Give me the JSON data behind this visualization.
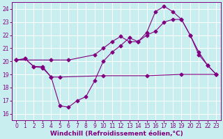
{
  "title": "",
  "xlabel": "Windchill (Refroidissement éolien,°C)",
  "ylabel": "",
  "bg_color": "#c8eef0",
  "grid_color": "#ffffff",
  "line_color": "#800080",
  "xlim": [
    -0.5,
    23.5
  ],
  "ylim": [
    15.5,
    24.5
  ],
  "xticks": [
    0,
    1,
    2,
    3,
    4,
    5,
    6,
    7,
    8,
    9,
    10,
    11,
    12,
    13,
    14,
    15,
    16,
    17,
    18,
    19,
    20,
    21,
    22,
    23
  ],
  "yticks": [
    16,
    17,
    18,
    19,
    20,
    21,
    22,
    23,
    24
  ],
  "line1_x": [
    0,
    1,
    2,
    3,
    4,
    5,
    10,
    15,
    19,
    23
  ],
  "line1_y": [
    20.1,
    20.2,
    19.6,
    19.6,
    18.8,
    18.8,
    18.9,
    18.9,
    19.0,
    19.0
  ],
  "line2_x": [
    0,
    1,
    2,
    3,
    4,
    5,
    6,
    7,
    8,
    9,
    10,
    11,
    12,
    13,
    14,
    15,
    16,
    17,
    18,
    19,
    20,
    21,
    22,
    23
  ],
  "line2_y": [
    20.1,
    20.2,
    19.6,
    19.5,
    18.8,
    16.6,
    16.5,
    17.0,
    17.3,
    18.5,
    20.0,
    20.7,
    21.2,
    21.8,
    21.5,
    22.2,
    23.8,
    24.2,
    23.8,
    23.2,
    22.0,
    20.5,
    19.7,
    19.0
  ],
  "line3_x": [
    0,
    4,
    6,
    9,
    10,
    11,
    12,
    13,
    14,
    15,
    16,
    17,
    18,
    19,
    20,
    21,
    22,
    23
  ],
  "line3_y": [
    20.1,
    20.1,
    20.1,
    20.5,
    21.0,
    21.5,
    21.9,
    21.5,
    21.5,
    22.0,
    22.3,
    23.0,
    23.2,
    23.2,
    22.0,
    20.7,
    19.7,
    19.0
  ],
  "marker": "D",
  "markersize": 2.5,
  "linewidth": 0.8,
  "xlabel_fontsize": 6.5,
  "tick_fontsize": 5.5
}
